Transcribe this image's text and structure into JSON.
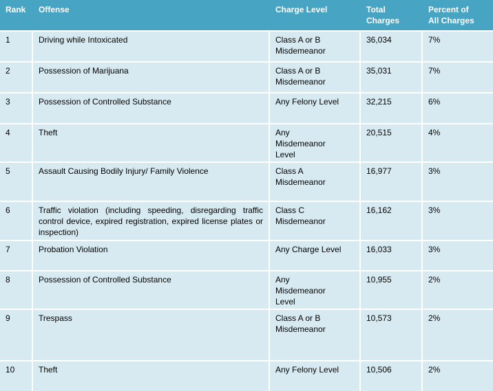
{
  "colors": {
    "header_bg": "#47A4C3",
    "row_bg": "#D8EAF1",
    "separator": "#FFFFFF",
    "header_text": "#FFFFFF",
    "body_text": "#000000"
  },
  "table": {
    "columns": [
      "Rank",
      "Offense",
      "Charge Level",
      "Total\nCharges",
      "Percent of\nAll Charges"
    ],
    "rows": [
      {
        "rank": "1",
        "offense": "Driving while Intoxicated",
        "charge_level": "Class A or B\nMisdemeanor",
        "total_charges": "36,034",
        "percent": "7%"
      },
      {
        "rank": "2",
        "offense": "Possession of Marijuana",
        "charge_level": "Class A or B\nMisdemeanor",
        "total_charges": "35,031",
        "percent": "7%"
      },
      {
        "rank": "3",
        "offense": "Possession of Controlled Substance",
        "charge_level": "Any Felony Level",
        "total_charges": "32,215",
        "percent": "6%"
      },
      {
        "rank": "4",
        "offense": "Theft",
        "charge_level": "Any\nMisdemeanor\nLevel",
        "total_charges": "20,515",
        "percent": "4%"
      },
      {
        "rank": "5",
        "offense": "Assault Causing Bodily Injury/ Family Violence",
        "charge_level": "Class A\nMisdemeanor",
        "total_charges": "16,977",
        "percent": "3%"
      },
      {
        "rank": "6",
        "offense": "Traffic violation (including speeding, disregarding traffic control device, expired registration, expired license plates or inspection)",
        "charge_level": "Class C\nMisdemeanor",
        "total_charges": "16,162",
        "percent": "3%"
      },
      {
        "rank": "7",
        "offense": "Probation Violation",
        "charge_level": "Any Charge Level",
        "total_charges": "16,033",
        "percent": "3%"
      },
      {
        "rank": "8",
        "offense": "Possession of Controlled Substance",
        "charge_level": "Any\nMisdemeanor\nLevel",
        "total_charges": "10,955",
        "percent": "2%"
      },
      {
        "rank": "9",
        "offense": "Trespass",
        "charge_level": "Class A or B\nMisdemeanor",
        "total_charges": "10,573",
        "percent": "2%"
      },
      {
        "rank": "10",
        "offense": "Theft",
        "charge_level": "Any Felony Level",
        "total_charges": "10,506",
        "percent": "2%"
      }
    ]
  },
  "chart_data": {
    "type": "table",
    "columns": [
      "Rank",
      "Offense",
      "Charge Level",
      "Total Charges",
      "Percent of All Charges"
    ],
    "rows": [
      [
        1,
        "Driving while Intoxicated",
        "Class A or B Misdemeanor",
        36034,
        "7%"
      ],
      [
        2,
        "Possession of Marijuana",
        "Class A or B Misdemeanor",
        35031,
        "7%"
      ],
      [
        3,
        "Possession of Controlled Substance",
        "Any Felony Level",
        32215,
        "6%"
      ],
      [
        4,
        "Theft",
        "Any Misdemeanor Level",
        20515,
        "4%"
      ],
      [
        5,
        "Assault Causing Bodily Injury/ Family Violence",
        "Class A Misdemeanor",
        16977,
        "3%"
      ],
      [
        6,
        "Traffic violation (including speeding, disregarding traffic control device, expired registration, expired license plates or inspection)",
        "Class C Misdemeanor",
        16162,
        "3%"
      ],
      [
        7,
        "Probation Violation",
        "Any Charge Level",
        16033,
        "3%"
      ],
      [
        8,
        "Possession of Controlled Substance",
        "Any Misdemeanor Level",
        10955,
        "2%"
      ],
      [
        9,
        "Trespass",
        "Class A or B Misdemeanor",
        10573,
        "2%"
      ],
      [
        10,
        "Theft",
        "Any Felony Level",
        10506,
        "2%"
      ]
    ]
  }
}
